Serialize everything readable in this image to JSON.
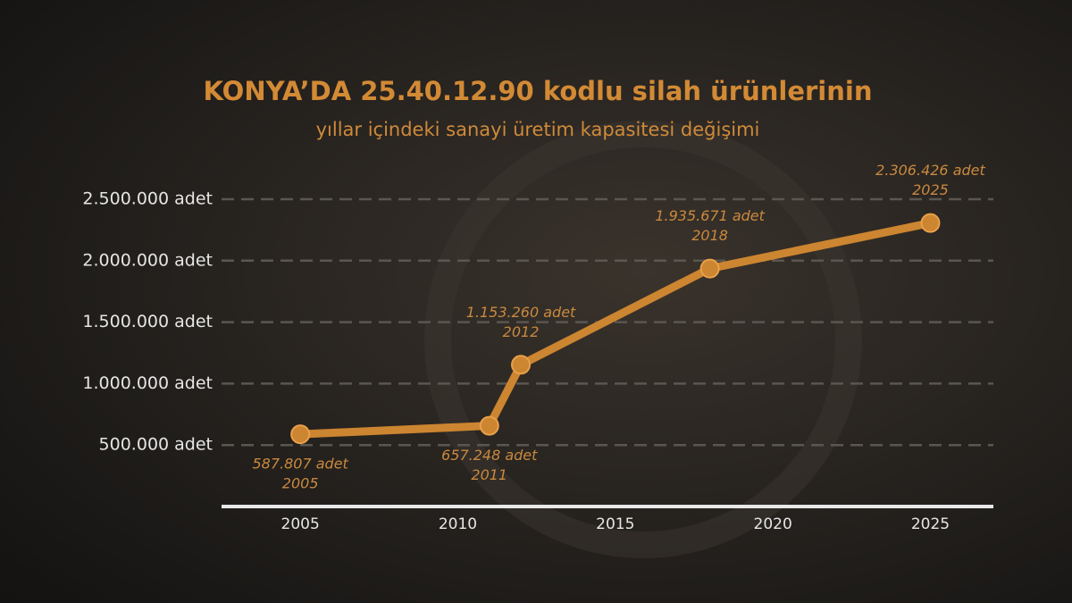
{
  "chart_data": {
    "type": "line",
    "title": "KONYA’DA 25.40.12.90 kodlu silah ürünlerinin",
    "subtitle": "yıllar içindeki sanayi üretim kapasitesi değişimi",
    "x": [
      2005,
      2011,
      2012,
      2018,
      2025
    ],
    "values": [
      587807,
      657248,
      1153260,
      1935671,
      2306426
    ],
    "value_labels": [
      "587.807 adet",
      "657.248 adet",
      "1.153.260 adet",
      "1.935.671 adet",
      "2.306.426 adet"
    ],
    "color": "#cc8530",
    "xlim": [
      2002.5,
      2027
    ],
    "xticks": [
      2005,
      2010,
      2015,
      2020,
      2025
    ],
    "ylim": [
      0,
      2500000
    ],
    "yticks": [
      {
        "value": 500000,
        "label": "500.000 adet"
      },
      {
        "value": 1000000,
        "label": "1.000.000 adet"
      },
      {
        "value": 1500000,
        "label": "1.500.000 adet"
      },
      {
        "value": 2000000,
        "label": "2.000.000 adet"
      },
      {
        "value": 2500000,
        "label": "2.500.000 adet"
      }
    ],
    "grid": true
  }
}
